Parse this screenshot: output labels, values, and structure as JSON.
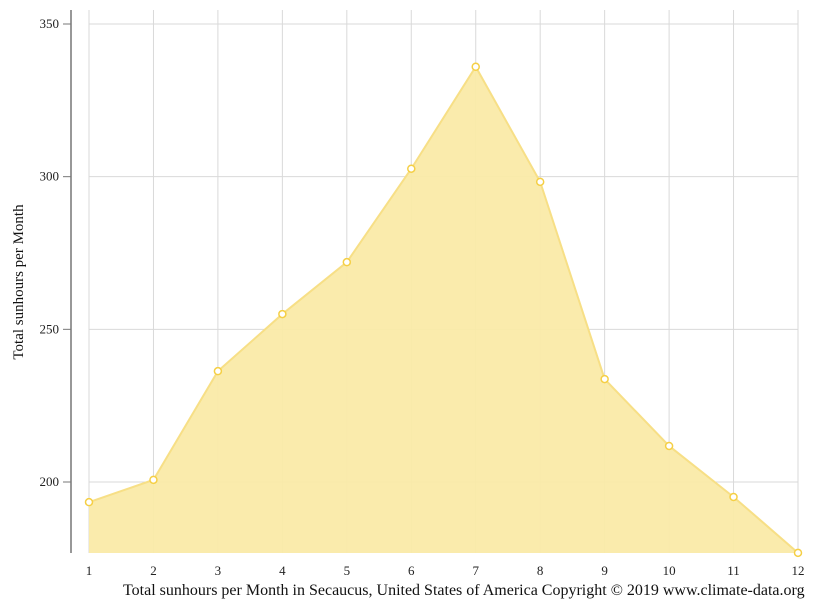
{
  "chart_data": {
    "type": "area",
    "title": "",
    "caption": "Total sunhours per Month in Secaucus, United States of America Copyright © 2019 www.climate-data.org",
    "xlabel": "",
    "ylabel": "Total sunhours per Month",
    "categories": [
      1,
      2,
      3,
      4,
      5,
      6,
      7,
      8,
      9,
      10,
      11,
      12
    ],
    "series": [
      {
        "name": "Total sunhours per Month",
        "values": [
          193.4,
          200.7,
          236.3,
          255.0,
          272.0,
          302.6,
          336.0,
          298.3,
          233.7,
          211.8,
          195.1,
          176.8
        ]
      }
    ],
    "yticks": [
      200,
      250,
      300,
      350
    ],
    "ylim": [
      176.8,
      355
    ],
    "grid": true,
    "legend": "none",
    "colors": {
      "fill": "#faeaa8",
      "line": "#f7df86",
      "marker_stroke": "#f5cf45",
      "grid": "#d9d9d9",
      "axis": "#777777"
    }
  }
}
